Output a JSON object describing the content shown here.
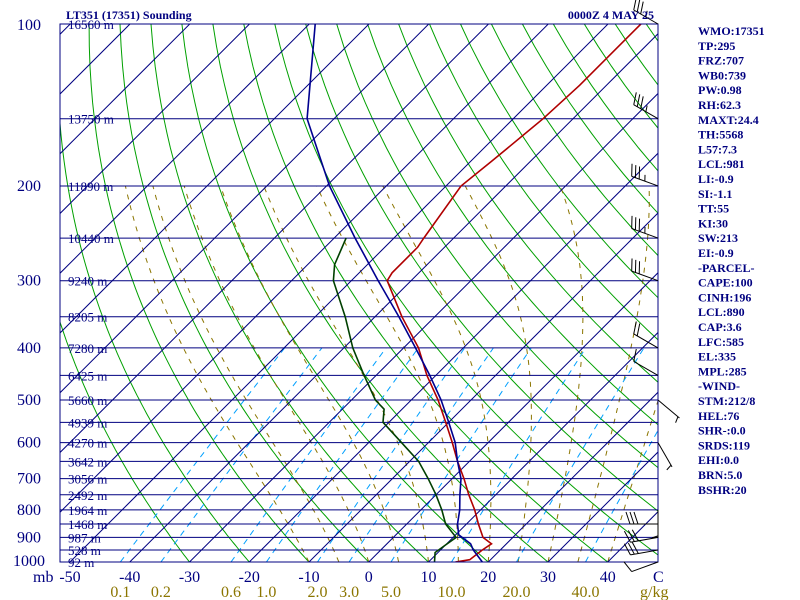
{
  "header": {
    "title": "LT351 (17351) Sounding",
    "time": "0000Z  4 MAY 25"
  },
  "indices": [
    "WMO:17351",
    "TP:295",
    "FRZ:707",
    "WB0:739",
    "PW:0.98",
    "RH:62.3",
    "MAXT:24.4",
    "TH:5568",
    "L57:7.3",
    "LCL:981",
    "LI:-0.9",
    "SI:-1.1",
    "TT:55",
    "KI:30",
    "SW:213",
    "EI:-0.9",
    "-PARCEL-",
    "CAPE:100",
    "CINH:196",
    "LCL:890",
    "CAP:3.6",
    "LFC:585",
    "EL:335",
    "MPL:285",
    "-WIND-",
    "STM:212/8",
    "HEL:76",
    "SHR-:0.0",
    "SRDS:119",
    "EHI:0.0",
    "BRN:5.0",
    "BSHR:20"
  ],
  "colors": {
    "frame": "#000080",
    "isobar": "#000080",
    "isotherm": "#000080",
    "dry_adiabat": "#00a000",
    "moist_adiabat": "#8b7500",
    "mixing_ratio": "#00a0ff",
    "temperature": "#b00000",
    "dewpoint": "#004000",
    "parcel": "#000090"
  },
  "chart_data": {
    "type": "line",
    "title": "LT351 (17351) Sounding",
    "xaxis_label": "C",
    "xaxis_unit_prefix": "mb",
    "yaxis_log_pressure": true,
    "ylim_mb": [
      1000,
      100
    ],
    "temperature_ticks": [
      {
        "label": "-50",
        "value": -50
      },
      {
        "label": "-40",
        "value": -40
      },
      {
        "label": "-30",
        "value": -30
      },
      {
        "label": "-20",
        "value": -20
      },
      {
        "label": "-10",
        "value": -10
      },
      {
        "label": "0",
        "value": 0
      },
      {
        "label": "10",
        "value": 10
      },
      {
        "label": "20",
        "value": 20
      },
      {
        "label": "30",
        "value": 30
      },
      {
        "label": "40",
        "value": 40
      }
    ],
    "pressure_ticks": [
      100,
      200,
      300,
      400,
      500,
      600,
      700,
      800,
      900,
      1000
    ],
    "heights": [
      {
        "p": 100,
        "label": "16560 m"
      },
      {
        "p": 150,
        "label": "13750 m"
      },
      {
        "p": 200,
        "label": "11890 m"
      },
      {
        "p": 250,
        "label": "10440 m"
      },
      {
        "p": 300,
        "label": "9240 m"
      },
      {
        "p": 350,
        "label": "8205 m"
      },
      {
        "p": 400,
        "label": "7280 m"
      },
      {
        "p": 450,
        "label": "6425 m"
      },
      {
        "p": 500,
        "label": "5660 m"
      },
      {
        "p": 550,
        "label": "4939 m"
      },
      {
        "p": 600,
        "label": "4270 m"
      },
      {
        "p": 650,
        "label": "3642 m"
      },
      {
        "p": 700,
        "label": "3056 m"
      },
      {
        "p": 750,
        "label": "2492 m"
      },
      {
        "p": 800,
        "label": "1964 m"
      },
      {
        "p": 850,
        "label": "1468 m"
      },
      {
        "p": 900,
        "label": "987 m"
      },
      {
        "p": 950,
        "label": "528 m"
      },
      {
        "p": 1000,
        "label": "92 m"
      }
    ],
    "mixing_ratio_labels": [
      {
        "label": "0.1",
        "value": 0.1
      },
      {
        "label": "0.2",
        "value": 0.2
      },
      {
        "label": "0.6",
        "value": 0.6
      },
      {
        "label": "1.0",
        "value": 1.0
      },
      {
        "label": "2.0",
        "value": 2.0
      },
      {
        "label": "3.0",
        "value": 3.0
      },
      {
        "label": "5.0",
        "value": 5.0
      },
      {
        "label": "10.0",
        "value": 10.0
      },
      {
        "label": "20.0",
        "value": 20.0
      },
      {
        "label": "40.0",
        "value": 40.0
      }
    ],
    "mixing_ratio_unit": "g/kg",
    "series": [
      {
        "key": "temperature",
        "points": [
          {
            "p": 1000,
            "t": 14.5
          },
          {
            "p": 990,
            "t": 16.5
          },
          {
            "p": 950,
            "t": 17.0
          },
          {
            "p": 925,
            "t": 17.5
          },
          {
            "p": 900,
            "t": 15.0
          },
          {
            "p": 850,
            "t": 12.0
          },
          {
            "p": 800,
            "t": 9.0
          },
          {
            "p": 750,
            "t": 5.5
          },
          {
            "p": 700,
            "t": 2.0
          },
          {
            "p": 650,
            "t": -2.0
          },
          {
            "p": 600,
            "t": -6.0
          },
          {
            "p": 550,
            "t": -10.5
          },
          {
            "p": 500,
            "t": -15.5
          },
          {
            "p": 450,
            "t": -21.5
          },
          {
            "p": 400,
            "t": -27.5
          },
          {
            "p": 350,
            "t": -35.5
          },
          {
            "p": 300,
            "t": -44.0
          },
          {
            "p": 290,
            "t": -44.5
          },
          {
            "p": 260,
            "t": -44.5
          },
          {
            "p": 250,
            "t": -45.0
          },
          {
            "p": 200,
            "t": -47.5
          },
          {
            "p": 180,
            "t": -46.5
          },
          {
            "p": 150,
            "t": -45.0
          },
          {
            "p": 130,
            "t": -44.5
          },
          {
            "p": 100,
            "t": -44.5
          }
        ]
      },
      {
        "key": "dewpoint",
        "points": [
          {
            "p": 1000,
            "t": 11.0
          },
          {
            "p": 960,
            "t": 9.5
          },
          {
            "p": 930,
            "t": 10.0
          },
          {
            "p": 900,
            "t": 10.5
          },
          {
            "p": 850,
            "t": 6.5
          },
          {
            "p": 800,
            "t": 3.5
          },
          {
            "p": 750,
            "t": 0.0
          },
          {
            "p": 700,
            "t": -4.0
          },
          {
            "p": 650,
            "t": -8.5
          },
          {
            "p": 600,
            "t": -14.5
          },
          {
            "p": 550,
            "t": -21.0
          },
          {
            "p": 520,
            "t": -23.0
          },
          {
            "p": 500,
            "t": -26.0
          },
          {
            "p": 450,
            "t": -32.0
          },
          {
            "p": 400,
            "t": -38.5
          },
          {
            "p": 350,
            "t": -45.0
          },
          {
            "p": 300,
            "t": -53.0
          },
          {
            "p": 280,
            "t": -55.5
          },
          {
            "p": 250,
            "t": -58.0
          }
        ]
      },
      {
        "key": "parcel",
        "points": [
          {
            "p": 1000,
            "t": 19.0
          },
          {
            "p": 950,
            "t": 15.5
          },
          {
            "p": 925,
            "t": 14.0
          },
          {
            "p": 890,
            "t": 10.5
          },
          {
            "p": 850,
            "t": 8.5
          },
          {
            "p": 800,
            "t": 6.5
          },
          {
            "p": 750,
            "t": 4.0
          },
          {
            "p": 700,
            "t": 1.5
          },
          {
            "p": 650,
            "t": -2.0
          },
          {
            "p": 600,
            "t": -5.5
          },
          {
            "p": 550,
            "t": -10.0
          },
          {
            "p": 500,
            "t": -15.0
          },
          {
            "p": 450,
            "t": -21.0
          },
          {
            "p": 400,
            "t": -28.0
          },
          {
            "p": 350,
            "t": -36.0
          },
          {
            "p": 300,
            "t": -45.5
          },
          {
            "p": 250,
            "t": -56.5
          },
          {
            "p": 200,
            "t": -69.5
          },
          {
            "p": 150,
            "t": -84.5
          },
          {
            "p": 100,
            "t": -99.0
          }
        ]
      }
    ],
    "wind_barbs": [
      {
        "p": 1000,
        "dir": 250,
        "kt": 10
      },
      {
        "p": 950,
        "dir": 260,
        "kt": 30
      },
      {
        "p": 900,
        "dir": 260,
        "kt": 30
      },
      {
        "p": 850,
        "dir": 270,
        "kt": 30
      },
      {
        "p": 800,
        "dir": 180,
        "kt": 5
      },
      {
        "p": 600,
        "dir": 150,
        "kt": 5
      },
      {
        "p": 500,
        "dir": 130,
        "kt": 5
      },
      {
        "p": 450,
        "dir": 300,
        "kt": 10
      },
      {
        "p": 400,
        "dir": 300,
        "kt": 20
      },
      {
        "p": 300,
        "dir": 290,
        "kt": 30
      },
      {
        "p": 250,
        "dir": 290,
        "kt": 35
      },
      {
        "p": 200,
        "dir": 290,
        "kt": 35
      },
      {
        "p": 150,
        "dir": 300,
        "kt": 35
      },
      {
        "p": 100,
        "dir": 300,
        "kt": 35
      }
    ]
  }
}
